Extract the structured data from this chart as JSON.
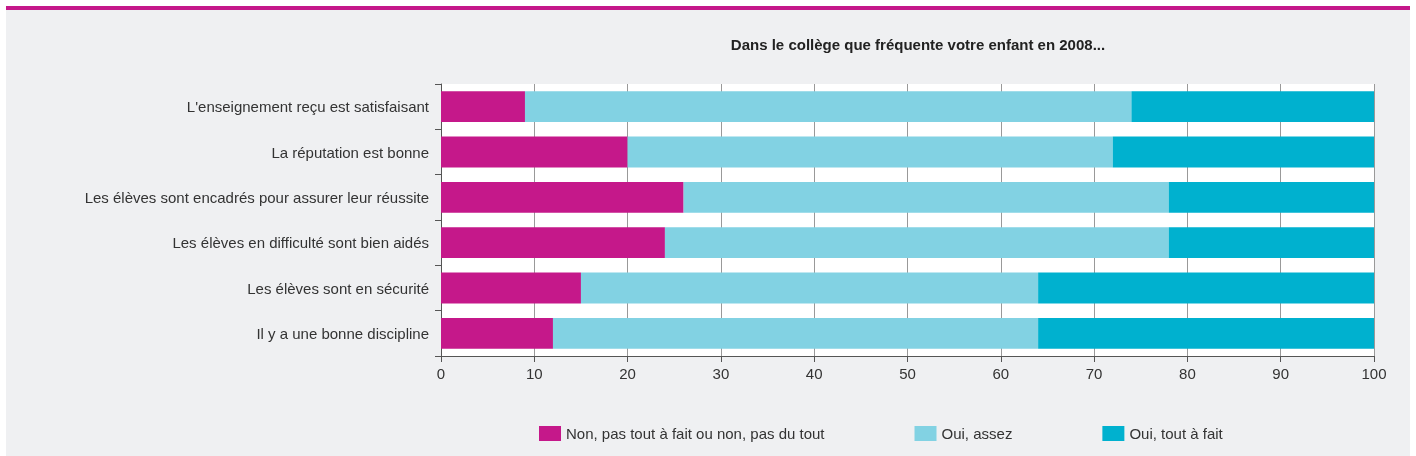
{
  "chart_data": {
    "type": "bar",
    "orientation": "horizontal",
    "stacked": true,
    "title": "Dans le collège que fréquente votre enfant en 2008...",
    "categories": [
      "L'enseignement reçu est satisfaisant",
      "La réputation est bonne",
      "Les élèves sont encadrés pour assurer leur réussite",
      "Les élèves en difficulté sont bien aidés",
      "Les élèves sont en sécurité",
      "Il y a une bonne discipline"
    ],
    "series": [
      {
        "name": "Non, pas tout à fait ou non, pas du tout",
        "color": "#c5188a",
        "values": [
          9,
          20,
          26,
          24,
          15,
          12
        ]
      },
      {
        "name": "Oui, assez",
        "color": "#82d2e3",
        "values": [
          65,
          52,
          52,
          54,
          49,
          52
        ]
      },
      {
        "name": "Oui, tout à fait",
        "color": "#00b1cf",
        "values": [
          26,
          28,
          22,
          22,
          36,
          36
        ]
      }
    ],
    "xlim": [
      0,
      100
    ],
    "xticks": [
      0,
      10,
      20,
      30,
      40,
      50,
      60,
      70,
      80,
      90,
      100
    ],
    "grid": "x",
    "legend": "bottom"
  }
}
